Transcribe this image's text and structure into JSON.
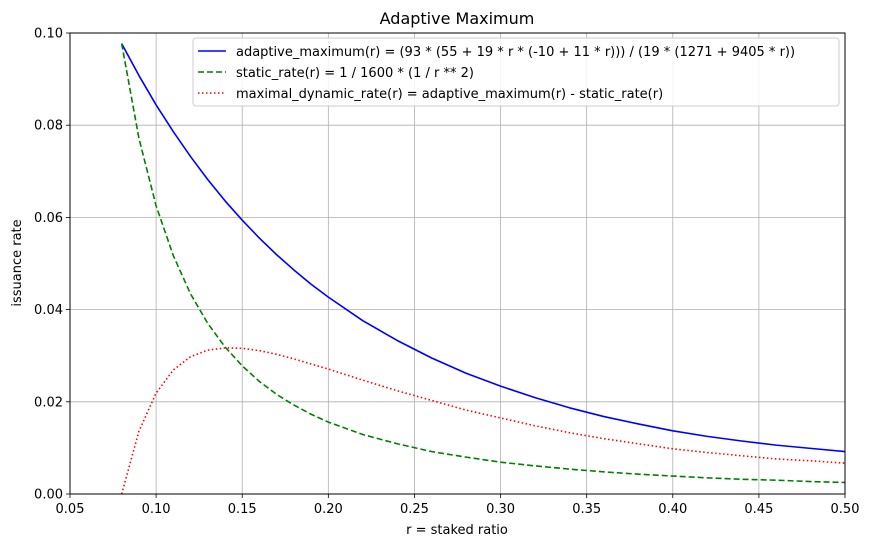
{
  "chart_data": {
    "type": "line",
    "title": "Adaptive Maximum",
    "xlabel": "r = staked ratio",
    "ylabel": "issuance rate",
    "xlim": [
      0.05,
      0.5
    ],
    "ylim": [
      0.0,
      0.1
    ],
    "xticks": [
      0.05,
      0.1,
      0.15,
      0.2,
      0.25,
      0.3,
      0.35,
      0.4,
      0.45,
      0.5
    ],
    "xtick_labels": [
      "0.05",
      "0.10",
      "0.15",
      "0.20",
      "0.25",
      "0.30",
      "0.35",
      "0.40",
      "0.45",
      "0.50"
    ],
    "yticks": [
      0.0,
      0.02,
      0.04,
      0.06,
      0.08,
      0.1
    ],
    "ytick_labels": [
      "0.00",
      "0.02",
      "0.04",
      "0.06",
      "0.08",
      "0.10"
    ],
    "grid": true,
    "legend_position": "top-right",
    "x": [
      0.08,
      0.09,
      0.1,
      0.11,
      0.12,
      0.13,
      0.14,
      0.15,
      0.16,
      0.17,
      0.18,
      0.19,
      0.2,
      0.22,
      0.24,
      0.26,
      0.28,
      0.3,
      0.32,
      0.34,
      0.36,
      0.38,
      0.4,
      0.42,
      0.44,
      0.46,
      0.48,
      0.5
    ],
    "series": [
      {
        "name": "adaptive_maximum(r) = (93 * (55 + 19 * r * (-10 + 11 * r))) / (19 * (1271 + 9405 * r))",
        "color": "#0000ff",
        "style": "solid",
        "values": [
          0.0977,
          0.0908,
          0.0844,
          0.0786,
          0.0732,
          0.0682,
          0.0636,
          0.0594,
          0.0555,
          0.0519,
          0.0486,
          0.0455,
          0.0427,
          0.0376,
          0.0333,
          0.0295,
          0.0262,
          0.0234,
          0.0209,
          0.0187,
          0.0168,
          0.0152,
          0.0137,
          0.0125,
          0.0115,
          0.0106,
          0.0099,
          0.0092
        ]
      },
      {
        "name": "static_rate(r) = 1 / 1600 * (1 / r ** 2)",
        "color": "#008000",
        "style": "dashed",
        "values": [
          0.0977,
          0.0772,
          0.0625,
          0.0517,
          0.0434,
          0.037,
          0.0319,
          0.0278,
          0.0244,
          0.0216,
          0.0193,
          0.0173,
          0.0156,
          0.0129,
          0.0109,
          0.0092,
          0.008,
          0.0069,
          0.0061,
          0.0054,
          0.0048,
          0.0043,
          0.0039,
          0.0035,
          0.0032,
          0.003,
          0.0027,
          0.0025
        ]
      },
      {
        "name": "maximal_dynamic_rate(r) = adaptive_maximum(r) - static_rate(r)",
        "color": "#ff0000",
        "style": "dotted",
        "values": [
          0.0,
          0.0136,
          0.0219,
          0.0269,
          0.0298,
          0.0312,
          0.0317,
          0.0316,
          0.0311,
          0.0303,
          0.0293,
          0.0282,
          0.0271,
          0.0247,
          0.0224,
          0.0203,
          0.0182,
          0.0165,
          0.0148,
          0.0133,
          0.012,
          0.0109,
          0.0098,
          0.009,
          0.0083,
          0.0076,
          0.0072,
          0.0067
        ]
      }
    ]
  }
}
